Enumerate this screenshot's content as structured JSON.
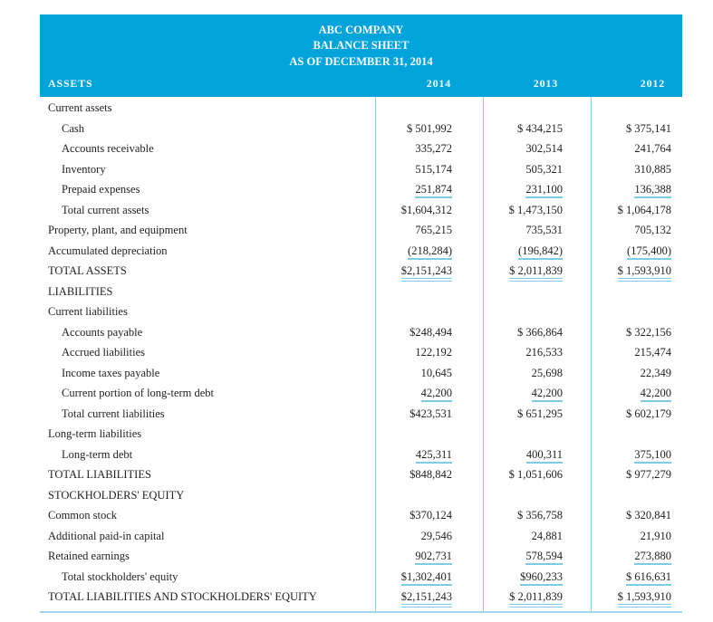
{
  "header": {
    "company": "ABC COMPANY",
    "statement": "BALANCE SHEET",
    "date": "AS OF DECEMBER 31, 2014",
    "section_label": "ASSETS",
    "years": [
      "2014",
      "2013",
      "2012"
    ]
  },
  "colors": {
    "header_bg": "#00a3da",
    "rule": "#7fcbe4"
  },
  "rows": [
    {
      "label": "Current assets",
      "indent": 0,
      "values": [
        "",
        "",
        ""
      ],
      "underline": ""
    },
    {
      "label": "Cash",
      "indent": 1,
      "values": [
        "$ 501,992",
        "$ 434,215",
        "$ 375,141"
      ],
      "underline": ""
    },
    {
      "label": "Accounts receivable",
      "indent": 1,
      "values": [
        "335,272",
        "302,514",
        "241,764"
      ],
      "underline": ""
    },
    {
      "label": "Inventory",
      "indent": 1,
      "values": [
        "515,174",
        "505,321",
        "310,885"
      ],
      "underline": ""
    },
    {
      "label": "Prepaid expenses",
      "indent": 1,
      "values": [
        "251,874",
        "231,100",
        "136,388"
      ],
      "underline": "single"
    },
    {
      "label": "Total current assets",
      "indent": 1,
      "values": [
        "$1,604,312",
        "$ 1,473,150",
        "$ 1,064,178"
      ],
      "underline": ""
    },
    {
      "label": "Property, plant, and equipment",
      "indent": 0,
      "values": [
        "765,215",
        "735,531",
        "705,132"
      ],
      "underline": ""
    },
    {
      "label": "Accumulated depreciation",
      "indent": 0,
      "values": [
        "(218,284)",
        "(196,842)",
        "(175,400)"
      ],
      "underline": "single"
    },
    {
      "label": "TOTAL ASSETS",
      "indent": 0,
      "values": [
        "$2,151,243",
        "$ 2,011,839",
        "$ 1,593,910"
      ],
      "underline": "double"
    },
    {
      "label": "LIABILITIES",
      "indent": 0,
      "values": [
        "",
        "",
        ""
      ],
      "underline": ""
    },
    {
      "label": "Current liabilities",
      "indent": 0,
      "values": [
        "",
        "",
        ""
      ],
      "underline": ""
    },
    {
      "label": "Accounts payable",
      "indent": 1,
      "values": [
        "$248,494",
        "$ 366,864",
        "$ 322,156"
      ],
      "underline": ""
    },
    {
      "label": "Accrued liabilities",
      "indent": 1,
      "values": [
        "122,192",
        "216,533",
        "215,474"
      ],
      "underline": ""
    },
    {
      "label": "Income taxes payable",
      "indent": 1,
      "values": [
        "10,645",
        "25,698",
        "22,349"
      ],
      "underline": ""
    },
    {
      "label": "Current portion of long-term debt",
      "indent": 1,
      "values": [
        "42,200",
        "42,200",
        "42,200"
      ],
      "underline": "single"
    },
    {
      "label": "Total current liabilities",
      "indent": 1,
      "values": [
        "$423,531",
        "$ 651,295",
        "$ 602,179"
      ],
      "underline": ""
    },
    {
      "label": "Long-term liabilities",
      "indent": 0,
      "values": [
        "",
        "",
        ""
      ],
      "underline": ""
    },
    {
      "label": "Long-term debt",
      "indent": 1,
      "values": [
        "425,311",
        "400,311",
        "375,100"
      ],
      "underline": "single"
    },
    {
      "label": "TOTAL LIABILITIES",
      "indent": 0,
      "values": [
        "$848,842",
        "$ 1,051,606",
        "$ 977,279"
      ],
      "underline": ""
    },
    {
      "label": "STOCKHOLDERS' EQUITY",
      "indent": 0,
      "values": [
        "",
        "",
        ""
      ],
      "underline": ""
    },
    {
      "label": "Common stock",
      "indent": 0,
      "values": [
        "$370,124",
        "$ 356,758",
        "$ 320,841"
      ],
      "underline": ""
    },
    {
      "label": "Additional paid-in capital",
      "indent": 0,
      "values": [
        "29,546",
        "24,881",
        "21,910"
      ],
      "underline": ""
    },
    {
      "label": "Retained earnings",
      "indent": 0,
      "values": [
        "902,731",
        "578,594",
        "273,880"
      ],
      "underline": "single"
    },
    {
      "label": "Total stockholders' equity",
      "indent": 1,
      "values": [
        "$1,302,401",
        "$960,233",
        "$ 616,631"
      ],
      "underline": "single"
    },
    {
      "label": "TOTAL LIABILITIES AND STOCKHOLDERS' EQUITY",
      "indent": 0,
      "values": [
        "$2,151,243",
        "$ 2,011,839",
        "$ 1,593,910"
      ],
      "underline": "double"
    }
  ]
}
